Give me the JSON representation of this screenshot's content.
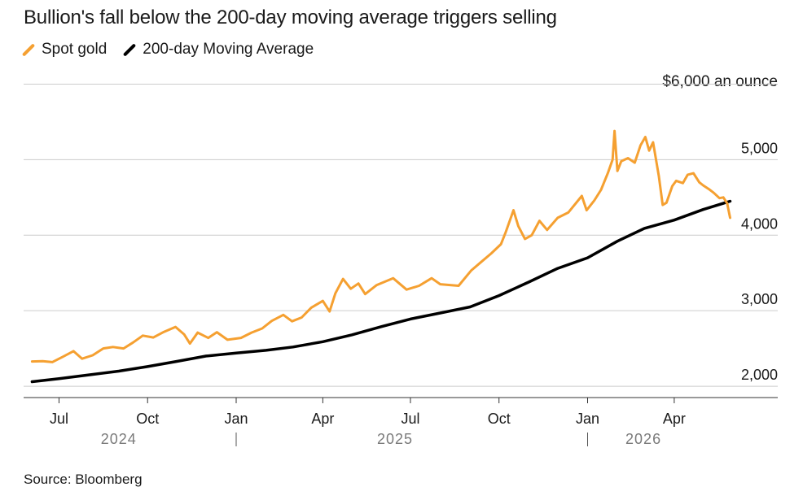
{
  "title": "Bullion's fall below the 200-day moving average triggers selling",
  "legend": [
    {
      "label": "Spot gold",
      "color": "#f5a031"
    },
    {
      "label": "200-day Moving Average",
      "color": "#000000"
    }
  ],
  "unit_label": "$6,000 an ounce",
  "source": "Source: Bloomberg",
  "chart_data": {
    "type": "line",
    "x_axis": {
      "month_ticks": [
        {
          "label": "Jul",
          "date": "2024-07-01"
        },
        {
          "label": "Oct",
          "date": "2024-10-01"
        },
        {
          "label": "Jan",
          "date": "2025-01-01"
        },
        {
          "label": "Apr",
          "date": "2025-04-01"
        },
        {
          "label": "Jul",
          "date": "2025-07-01"
        },
        {
          "label": "Oct",
          "date": "2025-10-01"
        },
        {
          "label": "Jan",
          "date": "2026-01-01"
        },
        {
          "label": "Apr",
          "date": "2026-04-01"
        }
      ],
      "years": [
        {
          "label": "2024",
          "date": "2024-09-01"
        },
        {
          "label": "2025",
          "date": "2025-06-15"
        },
        {
          "label": "2026",
          "date": "2026-02-28"
        }
      ],
      "year_dividers": [
        "2025-01-01",
        "2026-01-01"
      ],
      "range": [
        "2024-06-01",
        "2026-06-01"
      ]
    },
    "y_axis": {
      "ticks": [
        2000,
        3000,
        4000,
        5000,
        6000
      ],
      "tick_labels": [
        "2,000",
        "3,000",
        "4,000",
        "5,000",
        ""
      ],
      "range": [
        1850,
        6000
      ]
    },
    "grid": true,
    "series": [
      {
        "name": "Spot gold",
        "color": "#f5a031",
        "points": [
          [
            "2024-06-03",
            2328
          ],
          [
            "2024-06-14",
            2332
          ],
          [
            "2024-06-24",
            2319
          ],
          [
            "2024-07-05",
            2390
          ],
          [
            "2024-07-16",
            2465
          ],
          [
            "2024-07-25",
            2365
          ],
          [
            "2024-08-05",
            2410
          ],
          [
            "2024-08-16",
            2500
          ],
          [
            "2024-08-26",
            2520
          ],
          [
            "2024-09-06",
            2500
          ],
          [
            "2024-09-16",
            2580
          ],
          [
            "2024-09-26",
            2670
          ],
          [
            "2024-10-07",
            2645
          ],
          [
            "2024-10-18",
            2720
          ],
          [
            "2024-10-30",
            2785
          ],
          [
            "2024-11-08",
            2685
          ],
          [
            "2024-11-14",
            2565
          ],
          [
            "2024-11-22",
            2710
          ],
          [
            "2024-12-03",
            2640
          ],
          [
            "2024-12-12",
            2715
          ],
          [
            "2024-12-23",
            2615
          ],
          [
            "2025-01-06",
            2640
          ],
          [
            "2025-01-17",
            2710
          ],
          [
            "2025-01-28",
            2765
          ],
          [
            "2025-02-07",
            2865
          ],
          [
            "2025-02-19",
            2945
          ],
          [
            "2025-02-28",
            2860
          ],
          [
            "2025-03-10",
            2910
          ],
          [
            "2025-03-20",
            3040
          ],
          [
            "2025-04-01",
            3130
          ],
          [
            "2025-04-08",
            2990
          ],
          [
            "2025-04-14",
            3230
          ],
          [
            "2025-04-22",
            3420
          ],
          [
            "2025-04-30",
            3290
          ],
          [
            "2025-05-08",
            3360
          ],
          [
            "2025-05-15",
            3220
          ],
          [
            "2025-05-27",
            3340
          ],
          [
            "2025-06-13",
            3430
          ],
          [
            "2025-06-27",
            3280
          ],
          [
            "2025-07-10",
            3330
          ],
          [
            "2025-07-23",
            3430
          ],
          [
            "2025-08-01",
            3350
          ],
          [
            "2025-08-20",
            3330
          ],
          [
            "2025-09-02",
            3530
          ],
          [
            "2025-09-12",
            3640
          ],
          [
            "2025-09-23",
            3760
          ],
          [
            "2025-10-03",
            3880
          ],
          [
            "2025-10-08",
            4040
          ],
          [
            "2025-10-16",
            4330
          ],
          [
            "2025-10-21",
            4120
          ],
          [
            "2025-10-28",
            3950
          ],
          [
            "2025-11-04",
            4000
          ],
          [
            "2025-11-12",
            4190
          ],
          [
            "2025-11-20",
            4070
          ],
          [
            "2025-12-01",
            4230
          ],
          [
            "2025-12-12",
            4300
          ],
          [
            "2025-12-26",
            4520
          ],
          [
            "2025-12-31",
            4330
          ],
          [
            "2026-01-08",
            4460
          ],
          [
            "2026-01-15",
            4600
          ],
          [
            "2026-01-22",
            4820
          ],
          [
            "2026-01-27",
            5000
          ],
          [
            "2026-01-29",
            5380
          ],
          [
            "2026-02-01",
            4850
          ],
          [
            "2026-02-05",
            4980
          ],
          [
            "2026-02-12",
            5020
          ],
          [
            "2026-02-19",
            4960
          ],
          [
            "2026-02-25",
            5190
          ],
          [
            "2026-03-02",
            5300
          ],
          [
            "2026-03-06",
            5120
          ],
          [
            "2026-03-10",
            5230
          ],
          [
            "2026-03-16",
            4780
          ],
          [
            "2026-03-20",
            4400
          ],
          [
            "2026-03-24",
            4430
          ],
          [
            "2026-03-30",
            4650
          ],
          [
            "2026-04-03",
            4720
          ],
          [
            "2026-04-10",
            4690
          ],
          [
            "2026-04-15",
            4800
          ],
          [
            "2026-04-21",
            4820
          ],
          [
            "2026-04-27",
            4700
          ],
          [
            "2026-05-01",
            4660
          ],
          [
            "2026-05-07",
            4610
          ],
          [
            "2026-05-12",
            4560
          ],
          [
            "2026-05-18",
            4490
          ],
          [
            "2026-05-22",
            4500
          ],
          [
            "2026-05-26",
            4420
          ],
          [
            "2026-05-29",
            4230
          ]
        ]
      },
      {
        "name": "200-day Moving Average",
        "color": "#000000",
        "points": [
          [
            "2024-06-03",
            2060
          ],
          [
            "2024-07-01",
            2100
          ],
          [
            "2024-08-01",
            2150
          ],
          [
            "2024-09-01",
            2200
          ],
          [
            "2024-10-01",
            2260
          ],
          [
            "2024-11-01",
            2330
          ],
          [
            "2024-12-01",
            2400
          ],
          [
            "2025-01-01",
            2440
          ],
          [
            "2025-02-01",
            2475
          ],
          [
            "2025-03-01",
            2520
          ],
          [
            "2025-04-01",
            2590
          ],
          [
            "2025-05-01",
            2680
          ],
          [
            "2025-06-01",
            2790
          ],
          [
            "2025-07-01",
            2890
          ],
          [
            "2025-08-01",
            2970
          ],
          [
            "2025-09-01",
            3050
          ],
          [
            "2025-10-01",
            3200
          ],
          [
            "2025-11-01",
            3380
          ],
          [
            "2025-12-01",
            3560
          ],
          [
            "2026-01-01",
            3700
          ],
          [
            "2026-02-01",
            3920
          ],
          [
            "2026-03-01",
            4090
          ],
          [
            "2026-04-01",
            4200
          ],
          [
            "2026-05-01",
            4340
          ],
          [
            "2026-05-29",
            4450
          ]
        ]
      }
    ]
  }
}
